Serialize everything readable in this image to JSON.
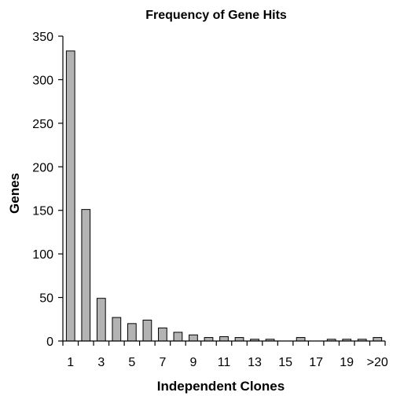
{
  "chart_data": {
    "type": "bar",
    "title": "Frequency of Gene Hits",
    "xlabel": "Independent Clones",
    "ylabel": "Genes",
    "categories": [
      "1",
      "2",
      "3",
      "4",
      "5",
      "6",
      "7",
      "8",
      "9",
      "10",
      "11",
      "12",
      "13",
      "14",
      "15",
      "16",
      "17",
      "18",
      "19",
      "20",
      ">20"
    ],
    "tick_labels_shown": [
      "1",
      "3",
      "5",
      "7",
      "9",
      "11",
      "13",
      "15",
      "17",
      "19",
      ">20"
    ],
    "values": [
      333,
      151,
      49,
      27,
      20,
      24,
      15,
      10,
      7,
      4,
      5,
      4,
      2,
      2,
      0,
      4,
      0,
      2,
      2,
      2,
      4
    ],
    "ylim": [
      0,
      350
    ],
    "yticks": [
      "0",
      "50",
      "100",
      "150",
      "200",
      "250",
      "300",
      "350"
    ],
    "grid": false,
    "legend": "none",
    "bar_color": "#b3b3b3"
  }
}
